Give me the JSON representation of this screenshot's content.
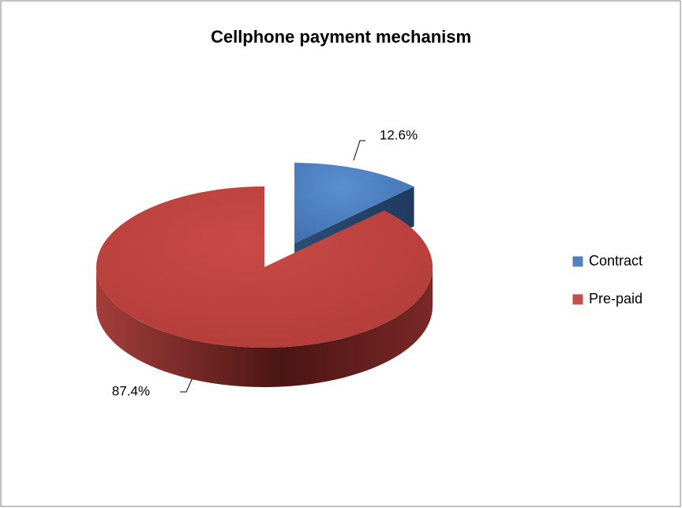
{
  "chart_data": {
    "type": "pie",
    "title": "Cellphone payment mechanism",
    "categories": [
      "Contract",
      "Pre-paid"
    ],
    "values": [
      12.6,
      87.4
    ],
    "value_labels": [
      "12.6%",
      "87.4%"
    ],
    "colors": [
      "#4f81bd",
      "#c0504d"
    ],
    "legend": "right"
  }
}
